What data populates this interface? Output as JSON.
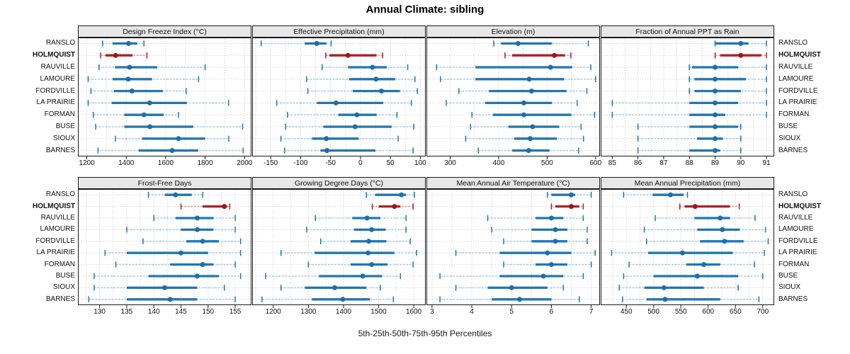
{
  "title": "Annual Climate: sibling",
  "footer": "5th-25th-50th-75th-95th Percentiles",
  "percentiles": [
    5,
    25,
    50,
    75,
    95
  ],
  "stations": [
    "RANSLO",
    "HOLMQUIST",
    "RAUVILLE",
    "LAMOURE",
    "FORDVILLE",
    "LA PRAIRIE",
    "FORMAN",
    "BUSE",
    "SIOUX",
    "BARNES"
  ],
  "highlight_station": "HOLMQUIST",
  "colors": {
    "blue": "#1f77b4",
    "blue_light": "#a9cde6",
    "blue_dot": "#1c6fae",
    "red": "#b01f24",
    "red_light": "#dd9aa0",
    "red_dot": "#9f141c",
    "strip_bg": "#e7e7e7",
    "border": "#1a1a1a",
    "grid": "#c6c6c6"
  },
  "chart_data": [
    {
      "type": "dotplot-percentiles",
      "title": "Design Freeze Index (°C)",
      "xlim": [
        1155,
        2035
      ],
      "ticks": [
        1200,
        1400,
        1600,
        1800,
        2000
      ],
      "grid_step": 100,
      "series": [
        {
          "station": "RANSLO",
          "values": [
            1280,
            1330,
            1412,
            1456,
            1490
          ]
        },
        {
          "station": "HOLMQUIST",
          "values": [
            1270,
            1295,
            1346,
            1432,
            1505
          ]
        },
        {
          "station": "RAUVILLE",
          "values": [
            1262,
            1343,
            1417,
            1557,
            1800
          ]
        },
        {
          "station": "LAMOURE",
          "values": [
            1207,
            1331,
            1410,
            1531,
            1767
          ]
        },
        {
          "station": "FORDVILLE",
          "values": [
            1221,
            1337,
            1429,
            1585,
            1704
          ]
        },
        {
          "station": "LA PRAIRIE",
          "values": [
            1207,
            1326,
            1519,
            1707,
            1919
          ]
        },
        {
          "station": "FORMAN",
          "values": [
            1233,
            1390,
            1490,
            1590,
            1665
          ]
        },
        {
          "station": "BUSE",
          "values": [
            1245,
            1390,
            1520,
            1740,
            1990
          ]
        },
        {
          "station": "SIOUX",
          "values": [
            1345,
            1480,
            1665,
            1800,
            1920
          ]
        },
        {
          "station": "BARNES",
          "values": [
            1257,
            1463,
            1633,
            1765,
            1993
          ]
        }
      ]
    },
    {
      "type": "dotplot-percentiles",
      "title": "Effective Precipitation (mm)",
      "xlim": [
        -181,
        109
      ],
      "ticks": [
        -150,
        -100,
        -50,
        0,
        50,
        100
      ],
      "grid_step": 25,
      "series": [
        {
          "station": "RANSLO",
          "values": [
            -166,
            -93,
            -73,
            -57,
            -49
          ]
        },
        {
          "station": "HOLMQUIST",
          "values": [
            -58,
            -52,
            -21,
            27,
            37
          ]
        },
        {
          "station": "RAUVILLE",
          "values": [
            -64,
            -21,
            20,
            44,
            79
          ]
        },
        {
          "station": "LAMOURE",
          "values": [
            -90,
            -19,
            26,
            58,
            91
          ]
        },
        {
          "station": "FORDVILLE",
          "values": [
            -88,
            -13,
            35,
            66,
            95
          ]
        },
        {
          "station": "LA PRAIRIE",
          "values": [
            -140,
            -73,
            -41,
            38,
            85
          ]
        },
        {
          "station": "FORMAN",
          "values": [
            -122,
            -37,
            -6,
            27,
            61
          ]
        },
        {
          "station": "BUSE",
          "values": [
            -125,
            -62,
            -9,
            52,
            89
          ]
        },
        {
          "station": "SIOUX",
          "values": [
            -133,
            -81,
            -57,
            -3,
            63
          ]
        },
        {
          "station": "BARNES",
          "values": [
            -127,
            -67,
            -56,
            25,
            88
          ]
        }
      ]
    },
    {
      "type": "dotplot-percentiles",
      "title": "Elevation (m)",
      "xlim": [
        251,
        609
      ],
      "ticks": [
        300,
        400,
        500,
        600
      ],
      "grid_step": 50,
      "series": [
        {
          "station": "RANSLO",
          "values": [
            390,
            405,
            440,
            510,
            585
          ]
        },
        {
          "station": "HOLMQUIST",
          "values": [
            413,
            428,
            515,
            537,
            549
          ]
        },
        {
          "station": "RAUVILLE",
          "values": [
            272,
            352,
            507,
            552,
            590
          ]
        },
        {
          "station": "LAMOURE",
          "values": [
            280,
            352,
            463,
            535,
            600
          ]
        },
        {
          "station": "FORDVILLE",
          "values": [
            318,
            380,
            468,
            540,
            582
          ]
        },
        {
          "station": "LA PRAIRIE",
          "values": [
            292,
            372,
            452,
            510,
            562
          ]
        },
        {
          "station": "FORMAN",
          "values": [
            345,
            388,
            452,
            550,
            598
          ]
        },
        {
          "station": "BUSE",
          "values": [
            342,
            420,
            470,
            525,
            570
          ]
        },
        {
          "station": "SIOUX",
          "values": [
            332,
            432,
            465,
            520,
            575
          ]
        },
        {
          "station": "BARNES",
          "values": [
            358,
            428,
            462,
            505,
            565
          ]
        }
      ]
    },
    {
      "type": "dotplot-percentiles",
      "title": "Fraction of Annual PPT as Rain",
      "xlim": [
        84.55,
        91.3
      ],
      "ticks": [
        85,
        86,
        87,
        88,
        89,
        90,
        91
      ],
      "grid_step": 0.5,
      "series": [
        {
          "station": "RANSLO",
          "values": [
            89,
            89,
            90,
            90.3,
            91
          ]
        },
        {
          "station": "HOLMQUIST",
          "values": [
            89,
            89.2,
            90,
            90.8,
            91
          ]
        },
        {
          "station": "RAUVILLE",
          "values": [
            88,
            88.1,
            89,
            89.9,
            91
          ]
        },
        {
          "station": "LAMOURE",
          "values": [
            88,
            88.2,
            89,
            90.2,
            91
          ]
        },
        {
          "station": "FORDVILLE",
          "values": [
            88,
            88.2,
            89,
            90,
            91
          ]
        },
        {
          "station": "LA PRAIRIE",
          "values": [
            85,
            88,
            89,
            89.9,
            91
          ]
        },
        {
          "station": "FORMAN",
          "values": [
            85,
            88,
            89,
            89.4,
            91
          ]
        },
        {
          "station": "BUSE",
          "values": [
            86,
            88,
            89,
            89.9,
            90
          ]
        },
        {
          "station": "SIOUX",
          "values": [
            86,
            88.3,
            89,
            89.3,
            90
          ]
        },
        {
          "station": "BARNES",
          "values": [
            86,
            88,
            89,
            89.2,
            90
          ]
        }
      ]
    },
    {
      "type": "dotplot-percentiles",
      "title": "Frost-Free Days",
      "xlim": [
        126,
        158
      ],
      "ticks": [
        130,
        135,
        140,
        145,
        150,
        155
      ],
      "grid_step": 2.5,
      "series": [
        {
          "station": "RANSLO",
          "values": [
            139,
            142,
            144,
            147,
            149
          ]
        },
        {
          "station": "HOLMQUIST",
          "values": [
            145,
            149,
            153,
            153.5,
            154
          ]
        },
        {
          "station": "RAUVILLE",
          "values": [
            140,
            144,
            148,
            151,
            155
          ]
        },
        {
          "station": "LAMOURE",
          "values": [
            135,
            145,
            148,
            151,
            155
          ]
        },
        {
          "station": "FORDVILLE",
          "values": [
            138,
            146,
            149,
            152,
            156
          ]
        },
        {
          "station": "LA PRAIRIE",
          "values": [
            131,
            135,
            145,
            150,
            156
          ]
        },
        {
          "station": "FORMAN",
          "values": [
            133,
            143,
            149,
            151,
            155
          ]
        },
        {
          "station": "BUSE",
          "values": [
            129,
            139,
            148,
            152,
            156
          ]
        },
        {
          "station": "SIOUX",
          "values": [
            129,
            135,
            142,
            148,
            153
          ]
        },
        {
          "station": "BARNES",
          "values": [
            128,
            135,
            143,
            148,
            155
          ]
        }
      ]
    },
    {
      "type": "dotplot-percentiles",
      "title": "Growing Degree Days (°C)",
      "xlim": [
        1140,
        1634
      ],
      "ticks": [
        1200,
        1300,
        1400,
        1500,
        1600
      ],
      "grid_step": 50,
      "series": [
        {
          "station": "RANSLO",
          "values": [
            1465,
            1490,
            1565,
            1578,
            1602
          ]
        },
        {
          "station": "HOLMQUIST",
          "values": [
            1482,
            1500,
            1545,
            1562,
            1598
          ]
        },
        {
          "station": "RAUVILLE",
          "values": [
            1320,
            1425,
            1467,
            1505,
            1578
          ]
        },
        {
          "station": "LAMOURE",
          "values": [
            1295,
            1430,
            1480,
            1520,
            1578
          ]
        },
        {
          "station": "FORDVILLE",
          "values": [
            1335,
            1420,
            1472,
            1522,
            1590
          ]
        },
        {
          "station": "LA PRAIRIE",
          "values": [
            1222,
            1318,
            1470,
            1545,
            1608
          ]
        },
        {
          "station": "FORMAN",
          "values": [
            1300,
            1420,
            1480,
            1525,
            1598
          ]
        },
        {
          "station": "BUSE",
          "values": [
            1178,
            1330,
            1455,
            1510,
            1562
          ]
        },
        {
          "station": "SIOUX",
          "values": [
            1222,
            1290,
            1375,
            1465,
            1505
          ]
        },
        {
          "station": "BARNES",
          "values": [
            1168,
            1310,
            1398,
            1475,
            1542
          ]
        }
      ]
    },
    {
      "type": "dotplot-percentiles",
      "title": "Mean Annual Air Temperature (°C)",
      "xlim": [
        2.86,
        7.22
      ],
      "ticks": [
        3,
        4,
        5,
        6,
        7
      ],
      "grid_step": 0.5,
      "series": [
        {
          "station": "RANSLO",
          "values": [
            5.9,
            6.0,
            6.5,
            6.6,
            7.0
          ]
        },
        {
          "station": "HOLMQUIST",
          "values": [
            6.0,
            6.1,
            6.5,
            6.7,
            6.8
          ]
        },
        {
          "station": "RAUVILLE",
          "values": [
            4.4,
            5.6,
            6.0,
            6.3,
            6.8
          ]
        },
        {
          "station": "LAMOURE",
          "values": [
            4.5,
            5.5,
            6.1,
            6.4,
            6.9
          ]
        },
        {
          "station": "FORDVILLE",
          "values": [
            4.8,
            5.5,
            6.1,
            6.4,
            6.9
          ]
        },
        {
          "station": "LA PRAIRIE",
          "values": [
            3.6,
            4.7,
            5.9,
            6.5,
            7.1
          ]
        },
        {
          "station": "FORMAN",
          "values": [
            4.8,
            5.6,
            6.0,
            6.4,
            7.0
          ]
        },
        {
          "station": "BUSE",
          "values": [
            3.2,
            4.7,
            5.8,
            6.3,
            6.8
          ]
        },
        {
          "station": "SIOUX",
          "values": [
            3.6,
            4.4,
            5.0,
            5.9,
            6.3
          ]
        },
        {
          "station": "BARNES",
          "values": [
            3.2,
            4.5,
            5.2,
            6.0,
            6.7
          ]
        }
      ]
    },
    {
      "type": "dotplot-percentiles",
      "title": "Mean Annual Precipitation (mm)",
      "xlim": [
        403,
        721
      ],
      "ticks": [
        450,
        500,
        550,
        600,
        650,
        700
      ],
      "grid_step": 25,
      "series": [
        {
          "station": "RANSLO",
          "values": [
            445,
            498,
            531,
            555,
            562
          ]
        },
        {
          "station": "HOLMQUIST",
          "values": [
            548,
            557,
            576,
            640,
            657
          ]
        },
        {
          "station": "RAUVILLE",
          "values": [
            503,
            575,
            622,
            640,
            686
          ]
        },
        {
          "station": "LAMOURE",
          "values": [
            483,
            580,
            626,
            658,
            705
          ]
        },
        {
          "station": "FORDVILLE",
          "values": [
            487,
            585,
            630,
            665,
            710
          ]
        },
        {
          "station": "LA PRAIRIE",
          "values": [
            423,
            490,
            553,
            645,
            703
          ]
        },
        {
          "station": "FORMAN",
          "values": [
            455,
            560,
            592,
            622,
            685
          ]
        },
        {
          "station": "BUSE",
          "values": [
            445,
            500,
            580,
            655,
            700
          ]
        },
        {
          "station": "SIOUX",
          "values": [
            437,
            483,
            519,
            592,
            655
          ]
        },
        {
          "station": "BARNES",
          "values": [
            443,
            487,
            521,
            622,
            693
          ]
        }
      ]
    }
  ]
}
